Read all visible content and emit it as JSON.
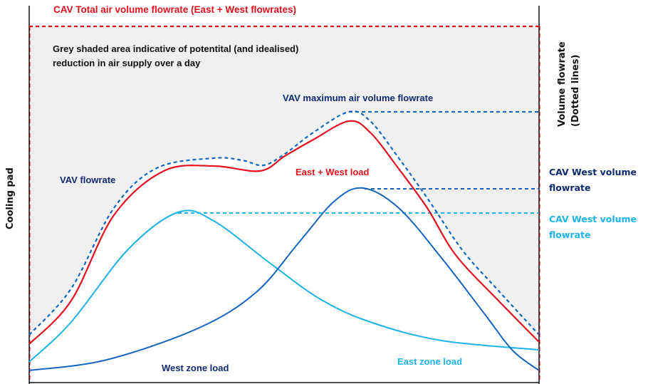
{
  "labels": {
    "cav_total": "CAV Total air volume flowrate (East + West flowrates)",
    "grey_note_line1": "Grey shaded area indicative of potentital (and idealised)",
    "grey_note_line2": "reduction in air supply over a day",
    "vav_max": "VAV maximum air volume flowrate",
    "vav_flowrate": "VAV flowrate",
    "east_west_load": "East + West load",
    "west_zone_load": "West zone load",
    "east_zone_load": "East zone load",
    "cav_west_dark_line1": "CAV West volume",
    "cav_west_dark_line2": "flowrate",
    "cav_west_light_line1": "CAV West volume",
    "cav_west_light_line2": "flowrate",
    "y_axis_left": "Cooling pad",
    "y_axis_right_line1": "Volume flowrate",
    "y_axis_right_line2": "(Dotted lines)"
  },
  "colors": {
    "red": "#e3101f",
    "navy": "#0f2a6e",
    "blue": "#1565c0",
    "cyan": "#1cb4e6",
    "grey_fill": "#f0f0f0"
  }
}
